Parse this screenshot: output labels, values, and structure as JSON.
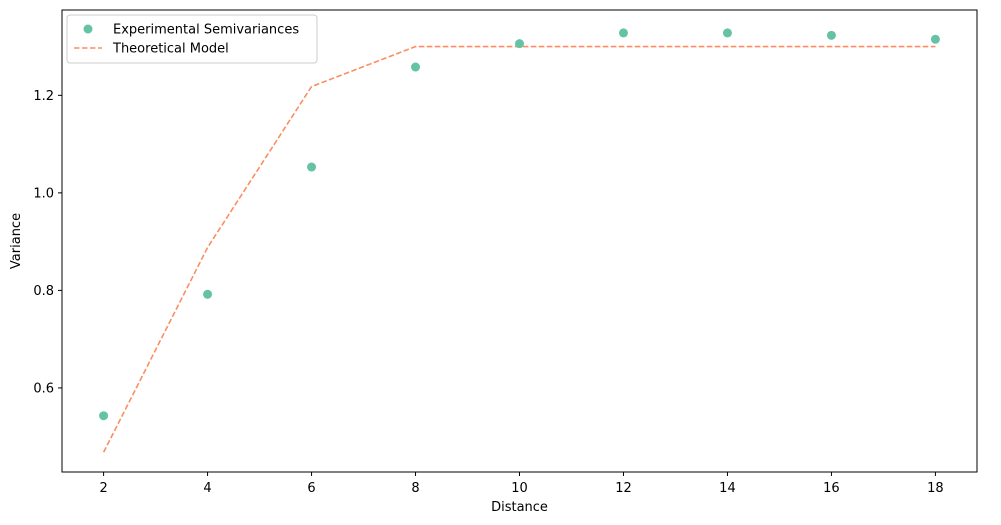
{
  "chart_data": {
    "type": "scatter",
    "xlabel": "Distance",
    "ylabel": "Variance",
    "xlim": [
      1.2,
      18.8
    ],
    "ylim": [
      0.4276,
      1.375
    ],
    "xticks": [
      2,
      4,
      6,
      8,
      10,
      12,
      14,
      16,
      18
    ],
    "yticks": [
      0.6,
      0.8,
      1.0,
      1.2
    ],
    "ytick_labels": [
      "0.6",
      "0.8",
      "1.0",
      "1.2"
    ],
    "grid": false,
    "legend_position": "top-left",
    "series": [
      {
        "name": "Experimental Semivariances",
        "kind": "scatter",
        "color": "#66c2a5",
        "x": [
          2,
          4,
          6,
          8,
          10,
          12,
          14,
          16,
          18
        ],
        "y": [
          0.543,
          0.792,
          1.053,
          1.258,
          1.306,
          1.328,
          1.328,
          1.323,
          1.315
        ]
      },
      {
        "name": "Theoretical Model",
        "kind": "line",
        "style": "dashed",
        "color": "#fc8d62",
        "x": [
          2,
          4,
          6,
          8,
          10,
          12,
          14,
          16,
          18
        ],
        "y": [
          0.468,
          0.888,
          1.218,
          1.3,
          1.3,
          1.3,
          1.3,
          1.3,
          1.3
        ]
      }
    ]
  }
}
